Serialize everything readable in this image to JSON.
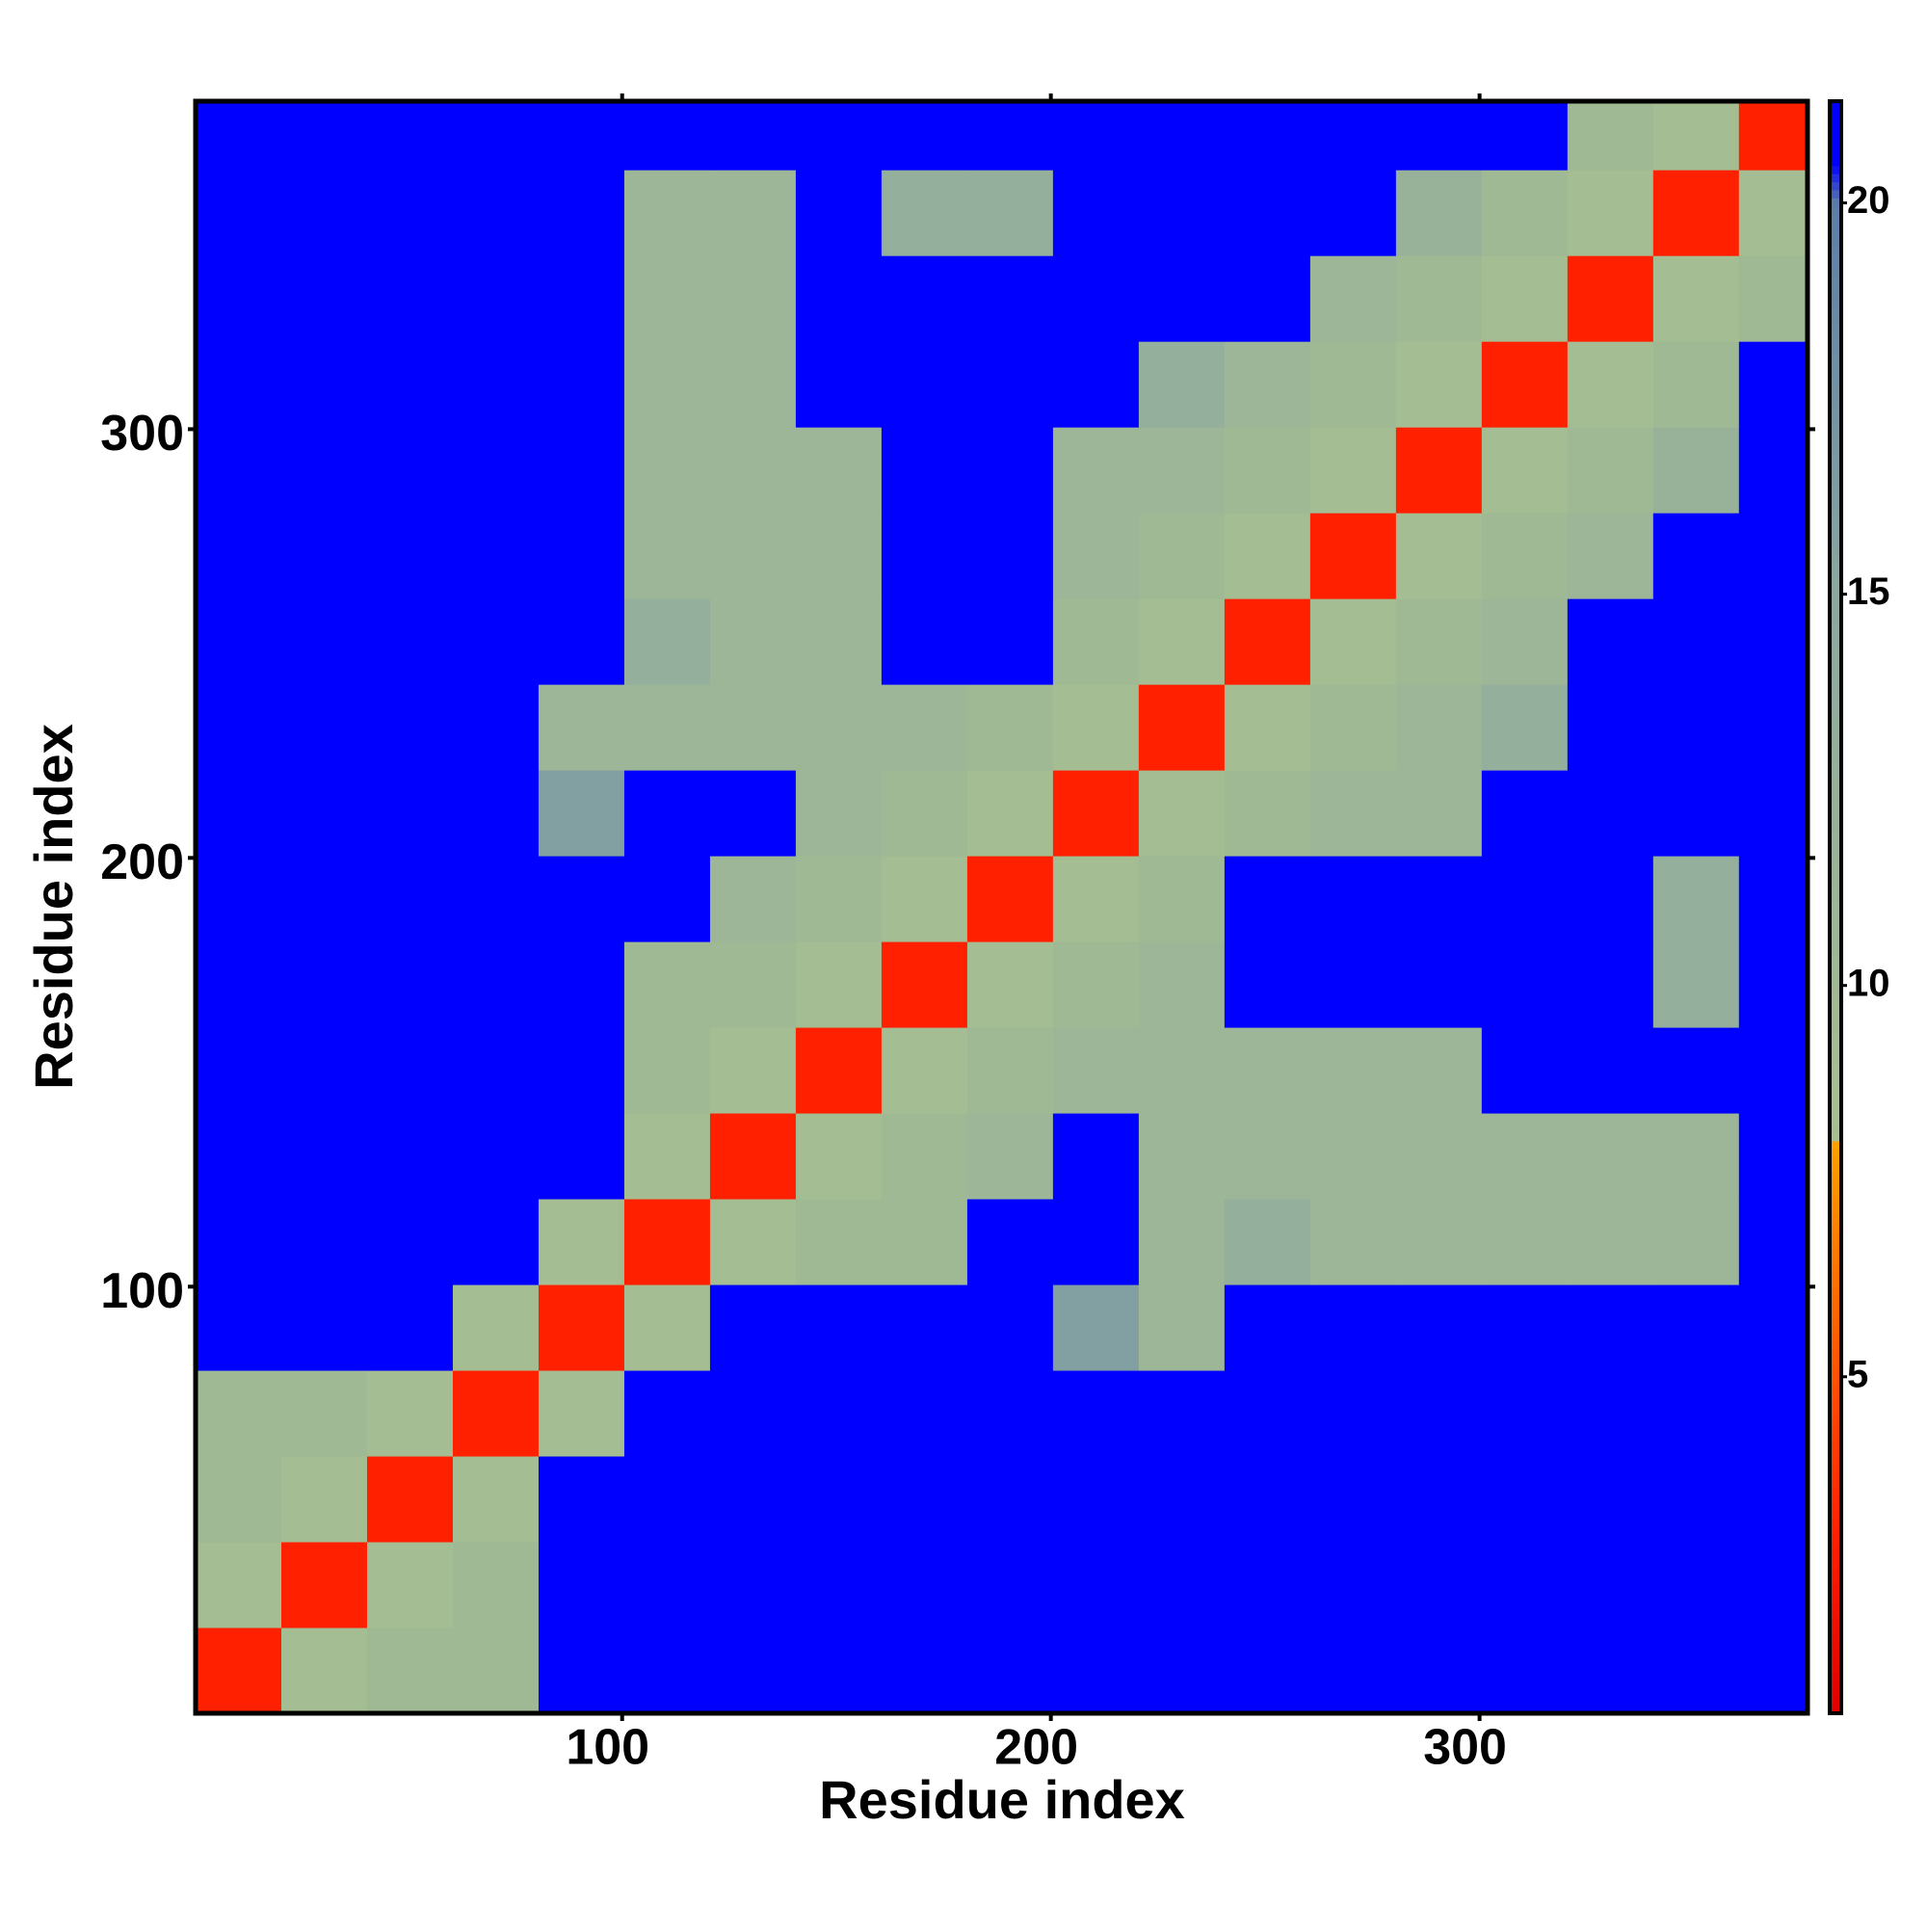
{
  "chart_data": {
    "type": "heatmap",
    "xlabel": "Residue index",
    "ylabel": "Residue index",
    "xlim": [
      0.5,
      376.5
    ],
    "ylim": [
      0.5,
      376.5
    ],
    "xticks": [
      100,
      200,
      300
    ],
    "yticks": [
      100,
      200,
      300
    ],
    "bins": [
      0.5,
      20.5,
      40.5,
      60.5,
      80.5,
      100.5,
      120.5,
      140.5,
      160.5,
      180.5,
      200.5,
      220.5,
      240.5,
      260.5,
      280.5,
      300.5,
      320.5,
      340.5,
      360.5,
      376.5
    ],
    "z": [
      [
        3,
        9,
        10,
        10,
        21,
        21,
        21,
        21,
        21,
        21,
        21,
        21,
        21,
        21,
        21,
        21,
        21,
        21,
        21
      ],
      [
        9,
        3,
        9,
        10,
        21,
        21,
        21,
        21,
        21,
        21,
        21,
        21,
        21,
        21,
        21,
        21,
        21,
        21,
        21
      ],
      [
        10,
        9,
        3,
        9,
        21,
        21,
        21,
        21,
        21,
        21,
        21,
        21,
        21,
        21,
        21,
        21,
        21,
        21,
        21
      ],
      [
        10,
        10,
        9,
        3,
        9,
        21,
        21,
        21,
        21,
        21,
        21,
        21,
        21,
        21,
        21,
        21,
        21,
        21,
        21
      ],
      [
        21,
        21,
        21,
        9,
        3,
        9,
        21,
        21,
        21,
        21,
        16,
        11,
        21,
        21,
        21,
        21,
        21,
        21,
        21
      ],
      [
        21,
        21,
        21,
        21,
        9,
        3,
        9,
        10,
        10,
        21,
        21,
        11,
        13,
        11,
        11,
        11,
        11,
        11,
        21
      ],
      [
        21,
        21,
        21,
        21,
        21,
        9,
        3,
        9,
        10,
        11,
        21,
        11,
        11,
        11,
        11,
        11,
        11,
        11,
        21
      ],
      [
        21,
        21,
        21,
        21,
        21,
        10,
        9,
        3,
        9,
        10,
        11,
        11,
        11,
        11,
        11,
        21,
        21,
        21,
        21
      ],
      [
        21,
        21,
        21,
        21,
        21,
        10,
        10,
        9,
        3,
        9,
        10,
        11,
        21,
        21,
        21,
        21,
        21,
        13,
        21
      ],
      [
        21,
        21,
        21,
        21,
        21,
        21,
        11,
        10,
        9,
        3,
        9,
        10,
        21,
        21,
        21,
        21,
        21,
        13,
        21
      ],
      [
        21,
        21,
        21,
        21,
        16,
        21,
        21,
        11,
        10,
        9,
        3,
        9,
        10,
        11,
        11,
        21,
        21,
        21,
        21
      ],
      [
        21,
        21,
        21,
        21,
        11,
        11,
        11,
        11,
        11,
        10,
        9,
        3,
        9,
        10,
        11,
        13,
        21,
        21,
        21
      ],
      [
        21,
        21,
        21,
        21,
        21,
        13,
        11,
        11,
        21,
        21,
        10,
        9,
        3,
        9,
        10,
        11,
        21,
        21,
        21
      ],
      [
        21,
        21,
        21,
        21,
        21,
        11,
        11,
        11,
        21,
        21,
        11,
        10,
        9,
        3,
        9,
        10,
        11,
        21,
        21
      ],
      [
        21,
        21,
        21,
        21,
        21,
        11,
        11,
        11,
        21,
        21,
        11,
        11,
        10,
        9,
        3,
        9,
        10,
        12,
        21
      ],
      [
        21,
        21,
        21,
        21,
        21,
        11,
        11,
        21,
        21,
        21,
        21,
        13,
        11,
        10,
        9,
        3,
        9,
        10,
        21
      ],
      [
        21,
        21,
        21,
        21,
        21,
        11,
        11,
        21,
        21,
        21,
        21,
        21,
        21,
        11,
        10,
        9,
        3,
        9,
        10
      ],
      [
        21,
        21,
        21,
        21,
        21,
        11,
        11,
        21,
        13,
        13,
        21,
        21,
        21,
        21,
        12,
        10,
        9,
        3,
        9
      ],
      [
        21,
        21,
        21,
        21,
        21,
        21,
        21,
        21,
        21,
        21,
        21,
        21,
        21,
        21,
        21,
        21,
        10,
        9,
        3
      ]
    ],
    "clim": [
      0.7,
      21.3
    ],
    "cticks": [
      5,
      10,
      15,
      20
    ],
    "colorscale": [
      [
        0.7,
        "#e00000"
      ],
      [
        3,
        "#ff2000"
      ],
      [
        6,
        "#ff6a00"
      ],
      [
        8,
        "#ffa000"
      ],
      [
        8.01,
        "#a8c090"
      ],
      [
        15,
        "#8ca8a0"
      ],
      [
        20,
        "#5a7ea8"
      ],
      [
        20.5,
        "#0000ff"
      ]
    ]
  }
}
